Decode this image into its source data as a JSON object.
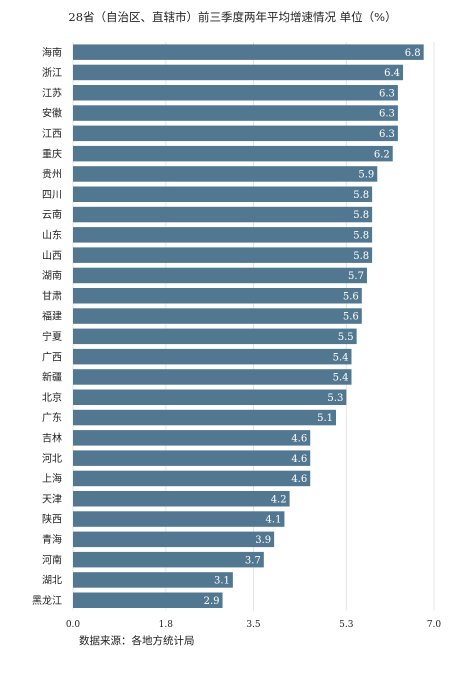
{
  "title": "28省（自治区、直辖市）前三季度两年平均增速情况  单位（%）",
  "source": "数据来源：各地方统计局",
  "colors": {
    "bar": "#527891",
    "grid": "#e4e4e4",
    "label": "#ffffff"
  },
  "chart_data": {
    "type": "bar",
    "orientation": "horizontal",
    "title": "28省（自治区、直辖市）前三季度两年平均增速情况  单位（%）",
    "xlabel": "",
    "ylabel": "",
    "xlim": [
      0,
      7.0
    ],
    "grid": true,
    "categories": [
      "海南",
      "浙江",
      "江苏",
      "安徽",
      "江西",
      "重庆",
      "贵州",
      "四川",
      "云南",
      "山东",
      "山西",
      "湖南",
      "甘肃",
      "福建",
      "宁夏",
      "广西",
      "新疆",
      "北京",
      "广东",
      "吉林",
      "河北",
      "上海",
      "天津",
      "陕西",
      "青海",
      "河南",
      "湖北",
      "黑龙江"
    ],
    "values": [
      6.8,
      6.4,
      6.3,
      6.3,
      6.3,
      6.2,
      5.9,
      5.8,
      5.8,
      5.8,
      5.8,
      5.7,
      5.6,
      5.6,
      5.5,
      5.4,
      5.4,
      5.3,
      5.1,
      4.6,
      4.6,
      4.6,
      4.2,
      4.1,
      3.9,
      3.7,
      3.1,
      2.9
    ],
    "ticks": [
      "0.0",
      "1.8",
      "3.5",
      "5.3",
      "7.0"
    ]
  }
}
